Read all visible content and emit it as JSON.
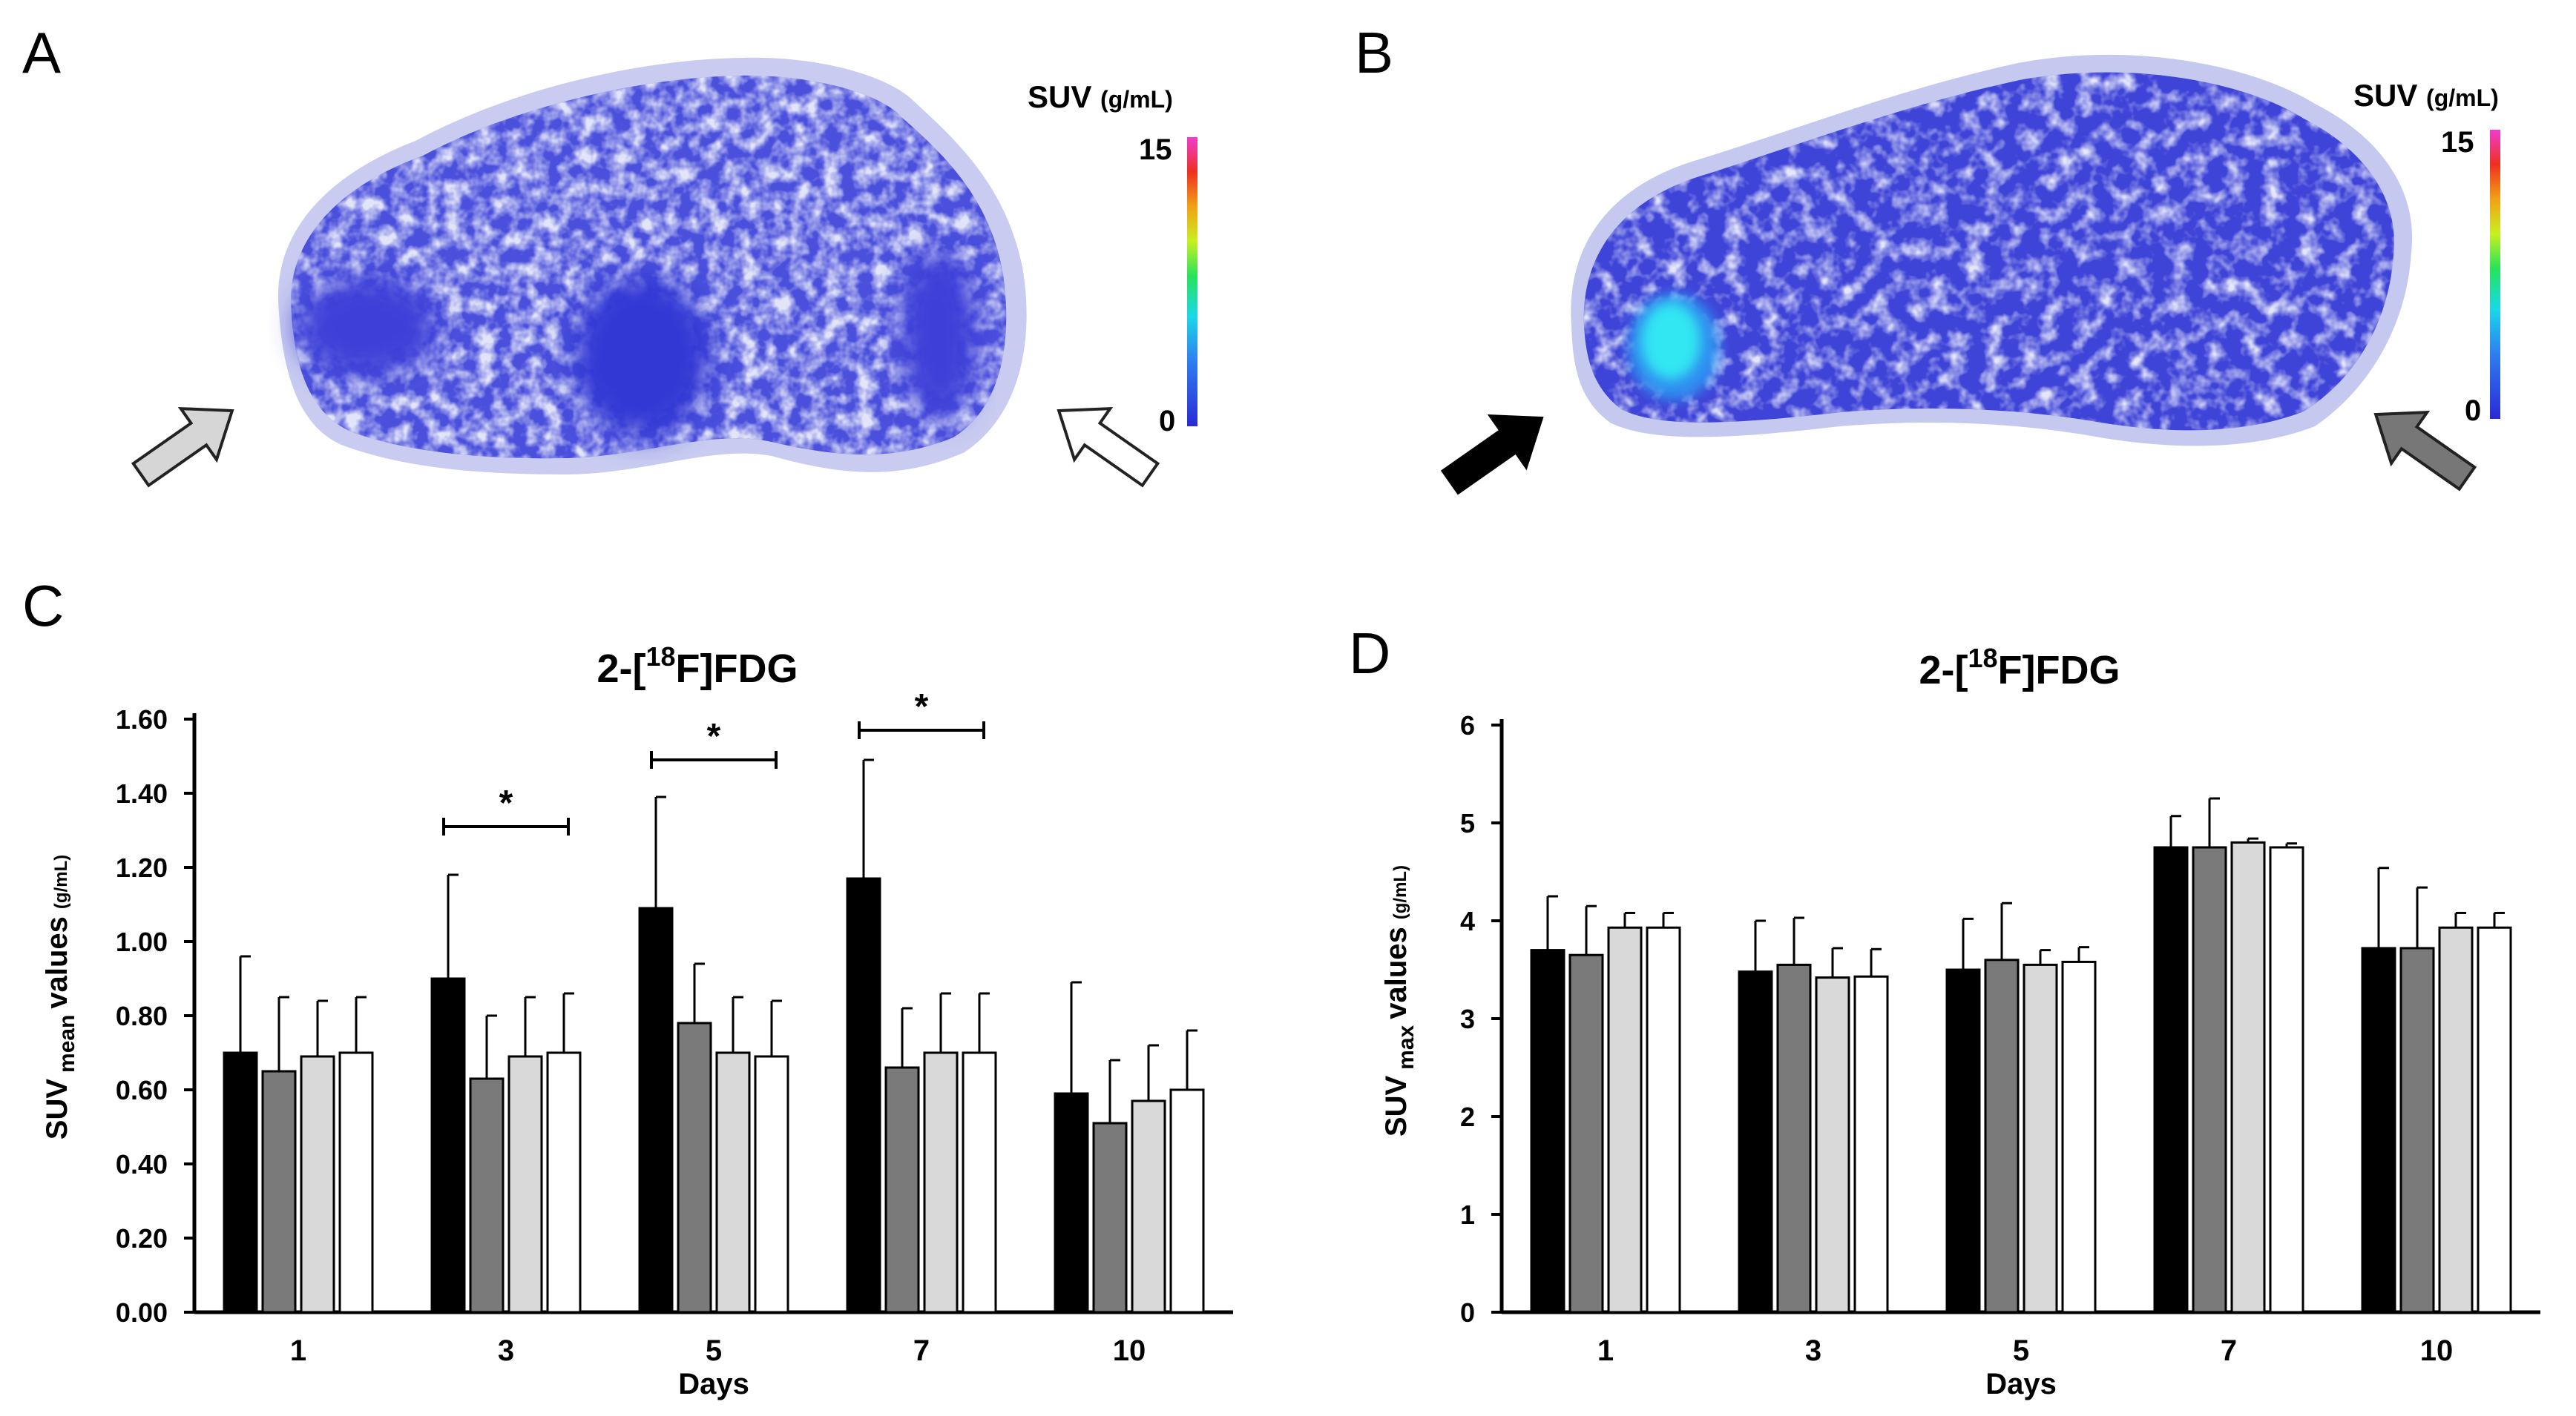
{
  "panels": {
    "a": {
      "letter": "A",
      "suv_label": "SUV",
      "suv_unit": "(g/mL)",
      "scale_max": "15",
      "scale_min": "0"
    },
    "b": {
      "letter": "B",
      "suv_label": "SUV",
      "suv_unit": "(g/mL)",
      "scale_max": "15",
      "scale_min": "0"
    },
    "c": {
      "letter": "C"
    },
    "d": {
      "letter": "D"
    }
  },
  "colors": {
    "group_fills": [
      "#000000",
      "#7a7a7a",
      "#d9d9d9",
      "#ffffff"
    ],
    "uptake_blue": "#3a3fd9",
    "uptake_halo": "#c7cbef",
    "hotspot": "#33e6f2"
  },
  "chart_data": [
    {
      "type": "bar",
      "panel": "C",
      "title_prefix": "2-[",
      "title_sup": "18",
      "title_suffix": "F]FDG",
      "ylabel_main": "SUV",
      "ylabel_sub": "mean",
      "ylabel_rest": "values",
      "ylabel_unit": "(g/mL)",
      "xlabel": "Days",
      "categories": [
        "1",
        "3",
        "5",
        "7",
        "10"
      ],
      "ylim": [
        0,
        1.6
      ],
      "yticks": [
        0.0,
        0.2,
        0.4,
        0.6,
        0.8,
        1.0,
        1.2,
        1.4,
        1.6
      ],
      "ytick_labels": [
        "0.00",
        "0.20",
        "0.40",
        "0.60",
        "0.80",
        "1.00",
        "1.20",
        "1.40",
        "1.60"
      ],
      "series": [
        {
          "values": [
            0.7,
            0.9,
            1.09,
            1.17,
            0.59
          ],
          "errors": [
            0.26,
            0.28,
            0.3,
            0.32,
            0.3
          ]
        },
        {
          "values": [
            0.65,
            0.63,
            0.78,
            0.66,
            0.51
          ],
          "errors": [
            0.2,
            0.17,
            0.16,
            0.16,
            0.17
          ]
        },
        {
          "values": [
            0.69,
            0.69,
            0.7,
            0.7,
            0.57
          ],
          "errors": [
            0.15,
            0.16,
            0.15,
            0.16,
            0.15
          ]
        },
        {
          "values": [
            0.7,
            0.7,
            0.69,
            0.7,
            0.6
          ],
          "errors": [
            0.15,
            0.16,
            0.15,
            0.16,
            0.16
          ]
        }
      ],
      "significance": [
        {
          "category_index": 1,
          "label": "*",
          "level": 1.31
        },
        {
          "category_index": 2,
          "label": "*",
          "level": 1.49
        },
        {
          "category_index": 3,
          "label": "*",
          "level": 1.57
        }
      ]
    },
    {
      "type": "bar",
      "panel": "D",
      "title_prefix": "2-[",
      "title_sup": "18",
      "title_suffix": "F]FDG",
      "ylabel_main": "SUV",
      "ylabel_sub": "max",
      "ylabel_rest": "values",
      "ylabel_unit": "(g/mL)",
      "xlabel": "Days",
      "categories": [
        "1",
        "3",
        "5",
        "7",
        "10"
      ],
      "ylim": [
        0,
        6
      ],
      "yticks": [
        0,
        1,
        2,
        3,
        4,
        5,
        6
      ],
      "ytick_labels": [
        "0",
        "1",
        "2",
        "3",
        "4",
        "5",
        "6"
      ],
      "series": [
        {
          "values": [
            3.7,
            3.48,
            3.5,
            4.75,
            3.72
          ],
          "errors": [
            0.55,
            0.52,
            0.52,
            0.32,
            0.82
          ]
        },
        {
          "values": [
            3.65,
            3.55,
            3.6,
            4.75,
            3.72
          ],
          "errors": [
            0.5,
            0.48,
            0.58,
            0.5,
            0.62
          ]
        },
        {
          "values": [
            3.93,
            3.42,
            3.55,
            4.8,
            3.93
          ],
          "errors": [
            0.15,
            0.3,
            0.15,
            0.04,
            0.15
          ]
        },
        {
          "values": [
            3.93,
            3.43,
            3.58,
            4.75,
            3.93
          ],
          "errors": [
            0.15,
            0.28,
            0.15,
            0.04,
            0.15
          ]
        }
      ]
    }
  ]
}
